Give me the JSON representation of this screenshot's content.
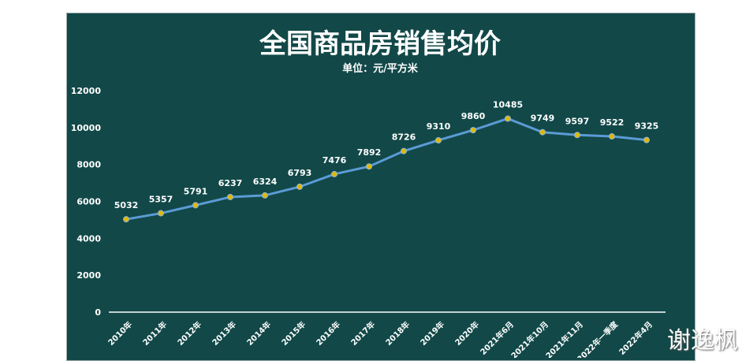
{
  "chart_data": {
    "type": "line",
    "title": "全国商品房销售均价",
    "subtitle": "单位：元/平方米",
    "categories": [
      "2010年",
      "2011年",
      "2012年",
      "2013年",
      "2014年",
      "2015年",
      "2016年",
      "2017年",
      "2018年",
      "2019年",
      "2020年",
      "2021年6月",
      "2021年10月",
      "2021年11月",
      "2022年一季度",
      "2022年4月"
    ],
    "values": [
      5032,
      5357,
      5791,
      6237,
      6324,
      6793,
      7476,
      7892,
      8726,
      9310,
      9860,
      10485,
      9749,
      9597,
      9522,
      9325
    ],
    "ylim": [
      0,
      12000
    ],
    "yticks": [
      0,
      2000,
      4000,
      6000,
      8000,
      10000,
      12000
    ],
    "grid": false,
    "line_color": "#5b9bd5",
    "marker_color": "#e0b800",
    "background": "#124848"
  },
  "watermark": "谢逸枫"
}
